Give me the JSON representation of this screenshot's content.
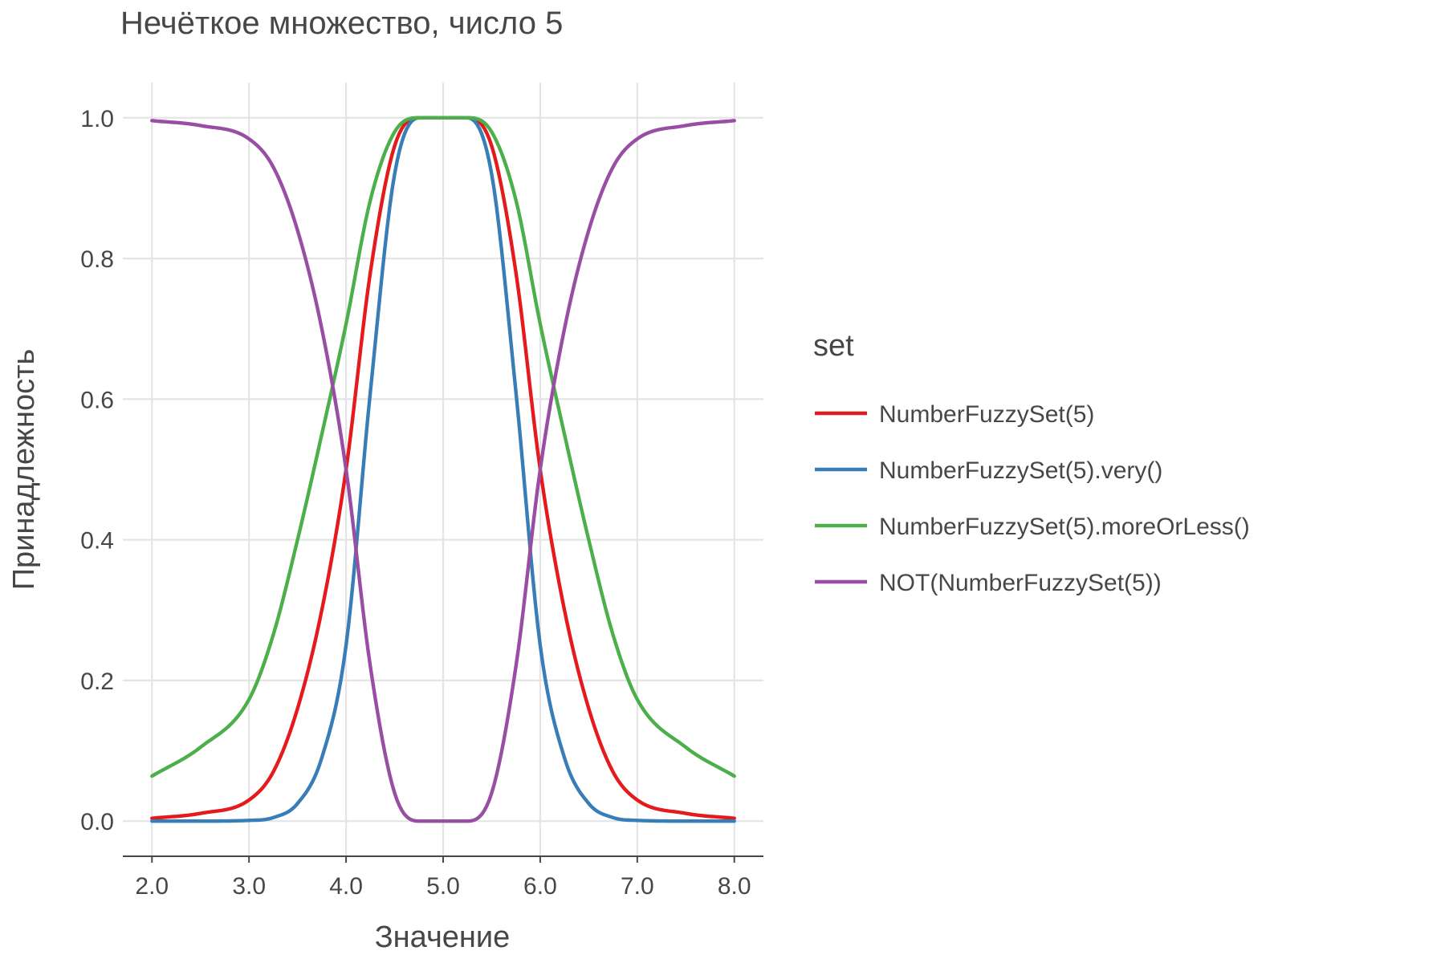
{
  "chart_data": {
    "type": "line",
    "title": "Нечёткое множество, число 5",
    "xlabel": "Значение",
    "ylabel": "Принадлежность",
    "xlim": [
      1.7,
      8.3
    ],
    "ylim": [
      -0.05,
      1.05
    ],
    "x_ticks": [
      2,
      3,
      4,
      5,
      6,
      7,
      8
    ],
    "x_tick_labels": [
      "2.0",
      "3.0",
      "4.0",
      "5.0",
      "6.0",
      "7.0",
      "8.0"
    ],
    "y_ticks": [
      0,
      0.2,
      0.4,
      0.6,
      0.8,
      1.0
    ],
    "y_tick_labels": [
      "0.0",
      "0.2",
      "0.4",
      "0.6",
      "0.8",
      "1.0"
    ],
    "grid": true,
    "legend": {
      "title": "set",
      "position": "right"
    },
    "x": [
      2.0,
      2.5,
      3.0,
      3.25,
      3.5,
      3.75,
      4.0,
      4.25,
      4.5,
      4.75,
      5.0,
      5.25,
      5.5,
      5.75,
      6.0,
      6.25,
      6.5,
      6.75,
      7.0,
      7.5,
      8.0
    ],
    "series": [
      {
        "name": "NumberFuzzySet(5)",
        "color": "#e41a1c",
        "values": [
          0.004,
          0.011,
          0.03,
          0.07,
          0.16,
          0.3,
          0.5,
          0.78,
          0.96,
          1.0,
          1.0,
          1.0,
          0.96,
          0.78,
          0.5,
          0.3,
          0.16,
          0.07,
          0.03,
          0.011,
          0.004
        ]
      },
      {
        "name": "NumberFuzzySet(5).very()",
        "color": "#377eb8",
        "values": [
          0.0,
          0.0,
          0.001,
          0.005,
          0.025,
          0.09,
          0.25,
          0.61,
          0.92,
          1.0,
          1.0,
          1.0,
          0.92,
          0.61,
          0.25,
          0.09,
          0.025,
          0.005,
          0.001,
          0.0,
          0.0
        ]
      },
      {
        "name": "NumberFuzzySet(5).moreOrLess()",
        "color": "#4daf4a",
        "values": [
          0.064,
          0.105,
          0.173,
          0.265,
          0.4,
          0.55,
          0.707,
          0.883,
          0.98,
          1.0,
          1.0,
          1.0,
          0.98,
          0.883,
          0.707,
          0.55,
          0.4,
          0.265,
          0.173,
          0.105,
          0.064
        ]
      },
      {
        "name": "NOT(NumberFuzzySet(5))",
        "color": "#984ea3",
        "values": [
          0.996,
          0.989,
          0.97,
          0.93,
          0.84,
          0.7,
          0.5,
          0.22,
          0.04,
          0.0,
          0.0,
          0.0,
          0.04,
          0.22,
          0.5,
          0.7,
          0.84,
          0.93,
          0.97,
          0.989,
          0.996
        ]
      }
    ]
  }
}
